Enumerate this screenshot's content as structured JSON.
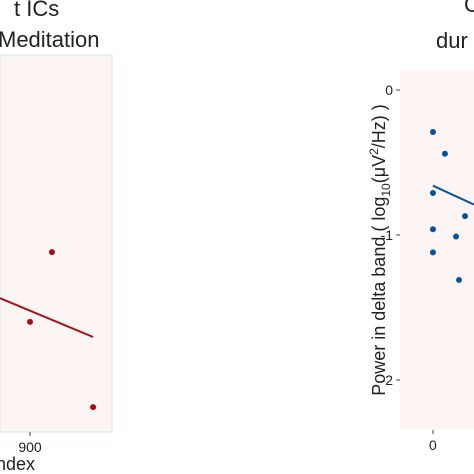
{
  "chart_data": [
    {
      "type": "scatter",
      "title_lines": [
        "t ICs",
        "Meditation"
      ],
      "x_label": "ndex",
      "color": "#a50f15",
      "x": [
        973,
        900,
        1110
      ],
      "values": [
        0.477,
        0.292,
        0.066
      ],
      "fit_x": [
        800,
        1110
      ],
      "fit_values": [
        0.355,
        0.252
      ],
      "xlim": [
        800,
        1173
      ],
      "ylim": [
        0,
        1
      ],
      "xticks": [
        900
      ]
    },
    {
      "type": "scatter",
      "title_lines": [
        "C",
        "dur"
      ],
      "y_label_parts": [
        "Power in delta band ( log",
        "10",
        "(μV",
        "2",
        "/Hz) )"
      ],
      "color": "#08519c",
      "x": [
        0,
        0.4,
        0,
        0,
        1.07,
        0.77,
        0,
        0.87
      ],
      "values": [
        -0.29,
        -0.44,
        -0.71,
        -0.96,
        -0.87,
        -1.01,
        -1.12,
        -1.31
      ],
      "fit_x": [
        0,
        1.37
      ],
      "fit_values": [
        -0.66,
        -0.79
      ],
      "xlim": [
        -1.1,
        1.37
      ],
      "ylim": [
        -2.345,
        0.138
      ],
      "xticks": [
        0
      ],
      "yticks": [
        0,
        -1,
        -2
      ]
    }
  ]
}
